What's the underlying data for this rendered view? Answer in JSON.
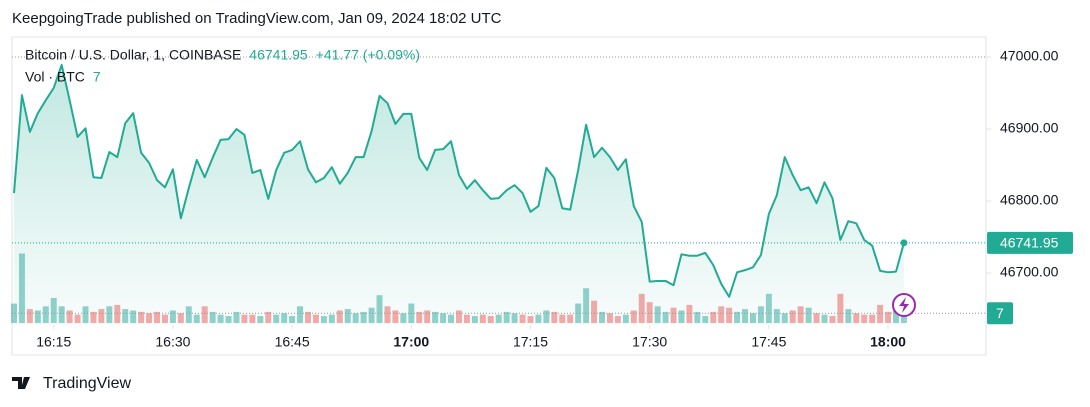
{
  "header": "KeepgoingTrade published on TradingView.com, Jan 09, 2024 18:02 UTC",
  "footer": "TradingView",
  "chart_data": {
    "type": "line",
    "x": [
      "16:10",
      "16:11",
      "16:12",
      "16:13",
      "16:14",
      "16:15",
      "16:16",
      "16:17",
      "16:18",
      "16:19",
      "16:20",
      "16:21",
      "16:22",
      "16:23",
      "16:24",
      "16:25",
      "16:26",
      "16:27",
      "16:28",
      "16:29",
      "16:30",
      "16:31",
      "16:32",
      "16:33",
      "16:34",
      "16:35",
      "16:36",
      "16:37",
      "16:38",
      "16:39",
      "16:40",
      "16:41",
      "16:42",
      "16:43",
      "16:44",
      "16:45",
      "16:46",
      "16:47",
      "16:48",
      "16:49",
      "16:50",
      "16:51",
      "16:52",
      "16:53",
      "16:54",
      "16:55",
      "16:56",
      "16:57",
      "16:58",
      "16:59",
      "17:00",
      "17:01",
      "17:02",
      "17:03",
      "17:04",
      "17:05",
      "17:06",
      "17:07",
      "17:08",
      "17:09",
      "17:10",
      "17:11",
      "17:12",
      "17:13",
      "17:14",
      "17:15",
      "17:16",
      "17:17",
      "17:18",
      "17:19",
      "17:20",
      "17:21",
      "17:22",
      "17:23",
      "17:24",
      "17:25",
      "17:26",
      "17:27",
      "17:28",
      "17:29",
      "17:30",
      "17:31",
      "17:32",
      "17:33",
      "17:34",
      "17:35",
      "17:36",
      "17:37",
      "17:38",
      "17:39",
      "17:40",
      "17:41",
      "17:42",
      "17:43",
      "17:44",
      "17:45",
      "17:46",
      "17:47",
      "17:48",
      "17:49",
      "17:50",
      "17:51",
      "17:52",
      "17:53",
      "17:54",
      "17:55",
      "17:56",
      "17:57",
      "17:58",
      "17:59",
      "18:00",
      "18:01",
      "18:02"
    ],
    "series": [
      {
        "name": "Bitcoin / U.S. Dollar, 1, COINBASE",
        "color": "#22ab94",
        "values": [
          46811,
          46947,
          46896,
          46922,
          46940,
          46957,
          46989,
          46940,
          46889,
          46901,
          46833,
          46832,
          46868,
          46861,
          46908,
          46922,
          46867,
          46853,
          46829,
          46819,
          46844,
          46776,
          46818,
          46857,
          46833,
          46860,
          46885,
          46886,
          46900,
          46892,
          46839,
          46843,
          46803,
          46843,
          46867,
          46871,
          46883,
          46844,
          46826,
          46832,
          46847,
          46824,
          46839,
          46861,
          46861,
          46897,
          46946,
          46936,
          46907,
          46921,
          46921,
          46860,
          46843,
          46871,
          46872,
          46883,
          46836,
          46817,
          46829,
          46815,
          46803,
          46804,
          46815,
          46822,
          46811,
          46785,
          46793,
          46846,
          46832,
          46790,
          46788,
          46843,
          46906,
          46861,
          46874,
          46861,
          46843,
          46858,
          46793,
          46771,
          46688,
          46689,
          46689,
          46683,
          46726,
          46724,
          46724,
          46728,
          46711,
          46685,
          46667,
          46701,
          46704,
          46708,
          46725,
          46782,
          46808,
          46861,
          46836,
          46815,
          46819,
          46797,
          46826,
          46804,
          46746,
          46772,
          46769,
          46746,
          46738,
          46703,
          46701,
          46702,
          46741.95
        ]
      },
      {
        "name": "Vol · BTC",
        "up_color": "rgba(38,166,154,0.5)",
        "down_color": "rgba(239,83,80,0.5)",
        "axis": "volume",
        "values": [
          14,
          50,
          10,
          9,
          12,
          18,
          12,
          9,
          6,
          12,
          8,
          10,
          12,
          13,
          10,
          9,
          8,
          7,
          8,
          6,
          9,
          7,
          12,
          6,
          12,
          8,
          6,
          5,
          8,
          6,
          6,
          5,
          8,
          6,
          7,
          5,
          12,
          8,
          6,
          5,
          6,
          9,
          10,
          7,
          8,
          11,
          20,
          12,
          9,
          7,
          14,
          8,
          9,
          8,
          7,
          6,
          9,
          6,
          5,
          6,
          5,
          6,
          8,
          7,
          6,
          5,
          6,
          9,
          8,
          6,
          6,
          14,
          25,
          16,
          8,
          7,
          5,
          6,
          9,
          21,
          15,
          12,
          8,
          11,
          9,
          13,
          8,
          5,
          8,
          12,
          11,
          8,
          10,
          7,
          12,
          21,
          10,
          7,
          9,
          12,
          11,
          7,
          6,
          5,
          21,
          10,
          7,
          6,
          6,
          13,
          8,
          9,
          7
        ]
      }
    ],
    "change_label": "+41.77 (+0.09%)",
    "ylim": [
      46627.8,
      47016.7
    ],
    "yticks": [
      {
        "value": 46700,
        "label": "46700.00"
      },
      {
        "value": 46800,
        "label": "46800.00"
      },
      {
        "value": 46900,
        "label": "46900.00"
      },
      {
        "value": 47000,
        "label": "47000.00"
      }
    ],
    "volume_ylim": [
      0,
      200
    ],
    "xticks": [
      "16:15",
      "16:30",
      "16:45",
      "17:00",
      "17:15",
      "17:30",
      "17:45",
      "18:00"
    ],
    "xticks_bold": [
      false,
      false,
      false,
      true,
      false,
      false,
      false,
      true
    ]
  }
}
